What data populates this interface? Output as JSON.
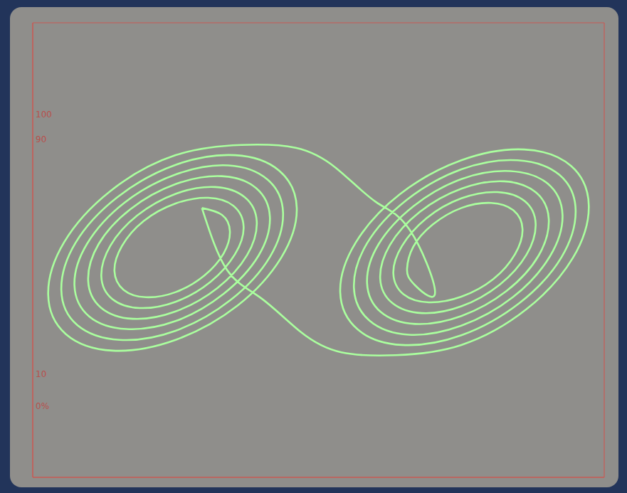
{
  "chart_data": {
    "type": "line",
    "color": "#aaff9e",
    "line_style": "solid",
    "grid": true,
    "tick_labels": false,
    "xlim": [
      -5,
      5
    ],
    "ylim": [
      -4,
      4
    ],
    "xticks": [
      -5,
      -4,
      -3,
      -2,
      -1,
      0,
      1,
      2,
      3,
      4,
      5
    ],
    "yticks": [
      -4,
      -3,
      -2,
      -1,
      0,
      1,
      2,
      3,
      4
    ],
    "annotations": [
      "100",
      "90",
      "10",
      "0%"
    ],
    "x": [
      -2.04,
      -1.69,
      -1.55,
      -1.66,
      -2.0,
      -2.5,
      -3.02,
      -3.41,
      -3.57,
      -3.44,
      -3.06,
      -2.5,
      -1.93,
      -1.49,
      -1.31,
      -1.46,
      -1.89,
      -2.5,
      -3.13,
      -3.61,
      -3.8,
      -3.64,
      -3.17,
      -2.5,
      -1.81,
      -1.29,
      -1.08,
      -1.25,
      -1.77,
      -2.5,
      -3.25,
      -3.81,
      -4.03,
      -3.85,
      -3.29,
      -2.5,
      -1.69,
      -1.09,
      -0.85,
      -1.05,
      -1.66,
      -2.5,
      -3.36,
      -4.01,
      -4.27,
      -4.05,
      -3.4,
      -2.5,
      -1.58,
      -0.89,
      -0.62,
      -0.85,
      -1.54,
      -2.5,
      -3.48,
      -4.22,
      -4.5,
      -4.25,
      -3.52,
      -2.5,
      -1.46,
      -0.69,
      -0.38,
      -0.65,
      -1.42,
      -2.5,
      -3.6,
      -4.42,
      -4.73,
      -4.45,
      -3.64,
      -2.5,
      -1.35,
      -0.4,
      0.3,
      1.0,
      1.6,
      2.04,
      1.69,
      1.55,
      1.66,
      2.0,
      2.5,
      3.02,
      3.41,
      3.57,
      3.44,
      3.06,
      2.5,
      1.93,
      1.49,
      1.31,
      1.46,
      1.89,
      2.5,
      3.13,
      3.61,
      3.8,
      3.64,
      3.17,
      2.5,
      1.81,
      1.29,
      1.08,
      1.25,
      1.77,
      2.5,
      3.25,
      3.81,
      4.03,
      3.85,
      3.29,
      2.5,
      1.69,
      1.09,
      0.85,
      1.05,
      1.66,
      2.5,
      3.36,
      4.01,
      4.27,
      4.05,
      3.4,
      2.5,
      1.58,
      0.89,
      0.62,
      0.85,
      1.54,
      2.5,
      3.48,
      4.22,
      4.5,
      4.25,
      3.52,
      2.5,
      1.46,
      0.69,
      0.38,
      0.65,
      1.42,
      2.5,
      3.6,
      4.42,
      4.73,
      4.45,
      3.64,
      2.5,
      1.35,
      0.4,
      -0.3,
      -1.0,
      -1.6,
      -2.04
    ],
    "values": [
      0.74,
      0.62,
      0.33,
      -0.06,
      -0.45,
      -0.74,
      -0.83,
      -0.7,
      -0.37,
      0.07,
      0.51,
      0.82,
      0.92,
      0.78,
      0.41,
      -0.07,
      -0.56,
      -0.91,
      -1.02,
      -0.86,
      -0.46,
      0.08,
      0.61,
      0.99,
      1.11,
      0.93,
      0.5,
      -0.09,
      -0.67,
      -1.08,
      -1.21,
      -1.01,
      -0.54,
      0.1,
      0.72,
      1.16,
      1.3,
      1.09,
      0.58,
      -0.1,
      -0.77,
      -1.25,
      -1.39,
      -1.17,
      -0.62,
      0.11,
      0.83,
      1.33,
      1.49,
      1.24,
      0.66,
      -0.12,
      -0.88,
      -1.42,
      -1.58,
      -1.32,
      -0.7,
      0.13,
      0.93,
      1.5,
      1.67,
      1.4,
      0.74,
      -0.13,
      -0.98,
      -1.58,
      -1.77,
      -1.48,
      -0.78,
      0.14,
      1.04,
      1.67,
      1.85,
      1.8,
      1.45,
      0.85,
      0.35,
      -0.74,
      -0.62,
      -0.33,
      0.06,
      0.45,
      0.74,
      0.83,
      0.7,
      0.37,
      -0.07,
      -0.51,
      -0.82,
      -0.92,
      -0.78,
      -0.41,
      0.07,
      0.56,
      0.91,
      1.02,
      0.86,
      0.46,
      -0.08,
      -0.61,
      -0.99,
      -1.11,
      -0.93,
      -0.5,
      0.09,
      0.67,
      1.08,
      1.21,
      1.01,
      0.54,
      -0.1,
      -0.72,
      -1.16,
      -1.3,
      -1.09,
      -0.58,
      0.1,
      0.77,
      1.25,
      1.39,
      1.17,
      0.62,
      -0.11,
      -0.83,
      -1.33,
      -1.49,
      -1.24,
      -0.66,
      0.12,
      0.88,
      1.42,
      1.58,
      1.32,
      0.7,
      -0.13,
      -0.93,
      -1.5,
      -1.67,
      -1.4,
      -0.74,
      0.13,
      0.98,
      1.58,
      1.77,
      1.48,
      0.78,
      -0.14,
      -1.04,
      -1.67,
      -1.85,
      -1.8,
      -1.45,
      -0.85,
      -0.35,
      0.74
    ]
  }
}
